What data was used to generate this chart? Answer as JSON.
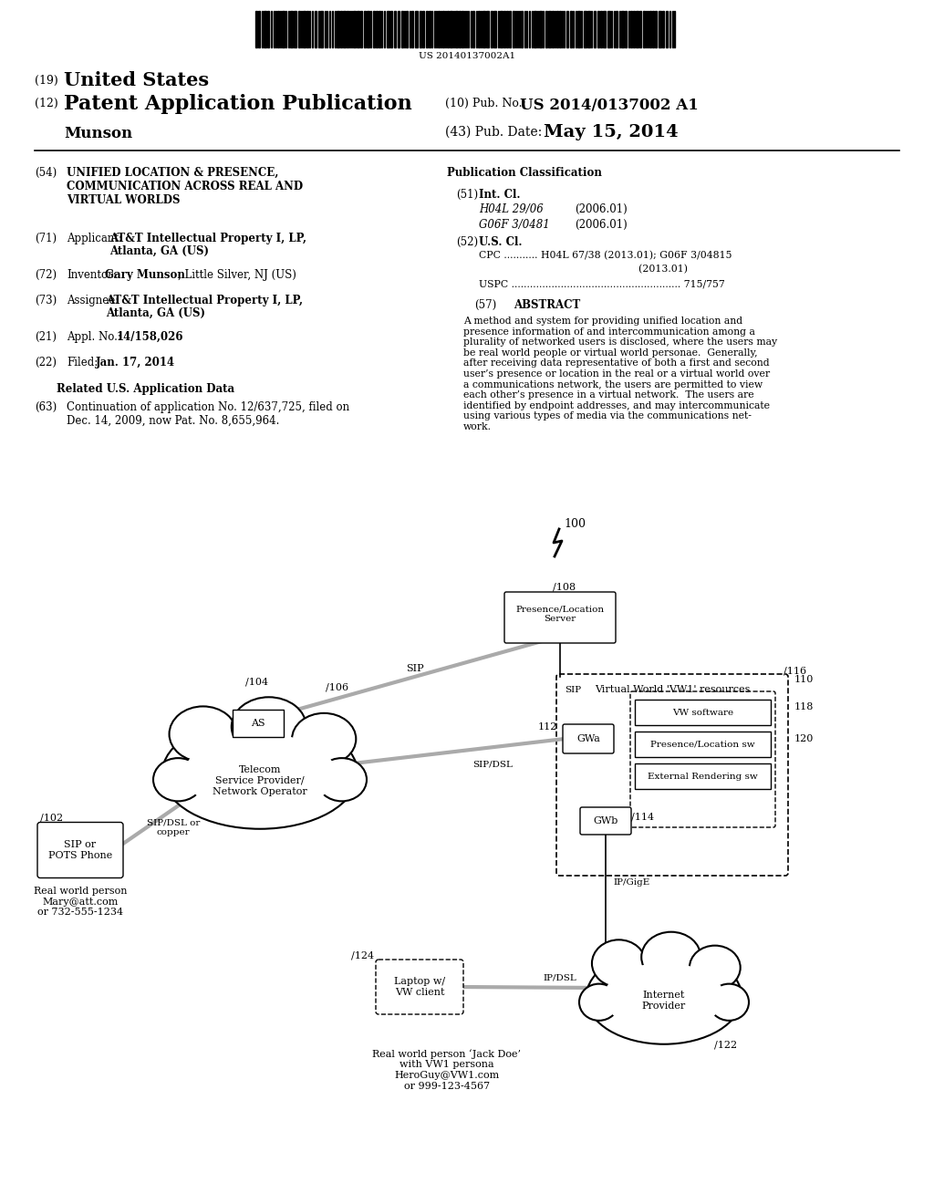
{
  "bg_color": "#ffffff",
  "barcode_text": "US 20140137002A1",
  "h1_num": "(19)",
  "h1_text": "United States",
  "h2_num": "(12)",
  "h2_text": "Patent Application Publication",
  "pub_num_label": "(10) Pub. No.:",
  "pub_num_val": "US 2014/0137002 A1",
  "author": "Munson",
  "date_label": "(43) Pub. Date:",
  "date_val": "May 15, 2014",
  "f54_num": "(54)",
  "f54_text": "UNIFIED LOCATION & PRESENCE,\nCOMMUNICATION ACROSS REAL AND\nVIRTUAL WORLDS",
  "f71_num": "(71)",
  "f71_label": "Applicant:",
  "f71_val1": "AT&T Intellectual Property I, LP,",
  "f71_val2": "Atlanta, GA (US)",
  "f72_num": "(72)",
  "f72_label": "Inventor:",
  "f72_bold": "Gary Munson",
  "f72_rest": ", Little Silver, NJ (US)",
  "f73_num": "(73)",
  "f73_label": "Assignee:",
  "f73_val1": "AT&T Intellectual Property I, LP,",
  "f73_val2": "Atlanta, GA (US)",
  "f21_num": "(21)",
  "f21_label": "Appl. No.:",
  "f21_val": "14/158,026",
  "f22_num": "(22)",
  "f22_label": "Filed:",
  "f22_val": "Jan. 17, 2014",
  "related_hdr": "Related U.S. Application Data",
  "f63_num": "(63)",
  "f63_text": "Continuation of application No. 12/637,725, filed on\nDec. 14, 2009, now Pat. No. 8,655,964.",
  "pc_title": "Publication Classification",
  "f51_num": "(51)",
  "f51_label": "Int. Cl.",
  "f51_c1": "H04L 29/06",
  "f51_d1": "(2006.01)",
  "f51_c2": "G06F 3/0481",
  "f51_d2": "(2006.01)",
  "f52_num": "(52)",
  "f52_label": "U.S. Cl.",
  "f52_cpc1": "CPC ........... H04L 67/38 (2013.01); G06F 3/04815",
  "f52_cpc2": "                                                  (2013.01)",
  "f52_uspc": "USPC ....................................................... 715/757",
  "f57_num": "(57)",
  "f57_label": "ABSTRACT",
  "abstract": "A method and system for providing unified location and\npresence information of and intercommunication among a\nplurality of networked users is disclosed, where the users may\nbe real world people or virtual world personae.  Generally,\nafter receiving data representative of both a first and second\nuser’s presence or location in the real or a virtual world over\na communications network, the users are permitted to view\neach other’s presence in a virtual network.  The users are\nidentified by endpoint addresses, and may intercommunicate\nusing various types of media via the communications net-\nwork.",
  "fig_num": "100",
  "n102": "102",
  "n102_lbl": "SIP or\nPOTS Phone",
  "n104": "104",
  "n106": "106",
  "n106_lbl": "AS",
  "n_telecom": "Telecom\nService Provider/\nNetwork Operator",
  "n108": "108",
  "n108_lbl": "Presence/Location\nServer",
  "n110": "110",
  "n110_lbl": "Virtual World 'VW1' resources",
  "n112": "112",
  "n_gwa": "GWa",
  "n114": "114",
  "n_gwb": "GWb",
  "n116": "116",
  "n118": "118",
  "n_vwsw": "VW software",
  "n_prloc": "Presence/Location sw",
  "n120": "120",
  "n_extern": "External Rendering sw",
  "n122": "122",
  "n_inet": "Internet\nProvider",
  "n124": "124",
  "n124_lbl": "Laptop w/\nVW client",
  "lbl_sip": "SIP",
  "lbl_sipdsl": "SIP/DSL",
  "lbl_sipcopper": "SIP/DSL or\ncopper",
  "lbl_ipdsl": "IP/DSL",
  "lbl_ipgige": "IP/GigE",
  "mary": "Real world person\nMary@att.com\nor 732-555-1234",
  "jack": "Real world person ‘Jack Doe’\nwith VW1 persona\nHeroGuy@VW1.com\nor 999-123-4567"
}
